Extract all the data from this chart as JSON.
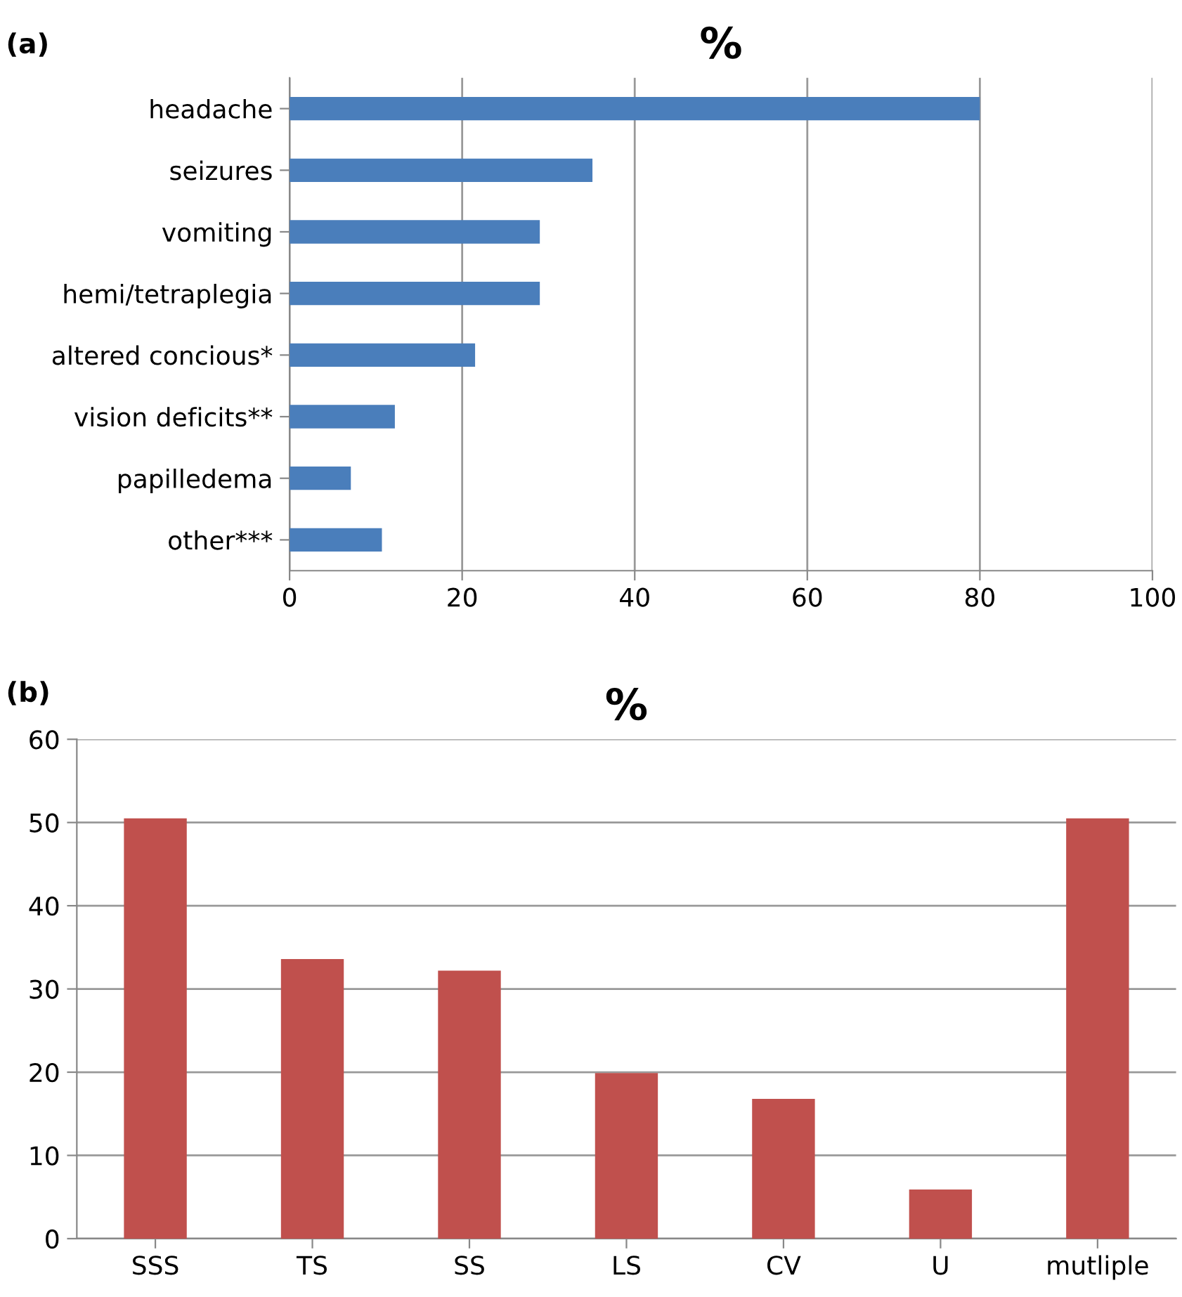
{
  "chart_data": [
    {
      "type": "bar",
      "orientation": "horizontal",
      "title": "%",
      "annotations": [
        "(a)"
      ],
      "categories": [
        "headache",
        "seizures",
        "vomiting",
        "hemi/tetraplegia",
        "altered concious*",
        "vision deficits**",
        "papilledema",
        "other***"
      ],
      "values": [
        80,
        35.1,
        29,
        29,
        21.5,
        12.2,
        7.1,
        10.7
      ],
      "color": "#4a7ebb",
      "xlim": [
        0,
        100
      ],
      "xticks": [
        0,
        20,
        40,
        60,
        80,
        100
      ],
      "grid": "x"
    },
    {
      "type": "bar",
      "title": "%",
      "annotations": [
        "(b)"
      ],
      "categories": [
        "SSS",
        "TS",
        "SS",
        "LS",
        "CV",
        "U",
        "mutliple"
      ],
      "values": [
        50.5,
        33.6,
        32.2,
        19.9,
        16.8,
        5.9,
        50.5
      ],
      "color": "#c0504d",
      "ylim": [
        0,
        60
      ],
      "yticks": [
        0,
        10,
        20,
        30,
        40,
        50,
        60
      ],
      "grid": "y"
    }
  ]
}
